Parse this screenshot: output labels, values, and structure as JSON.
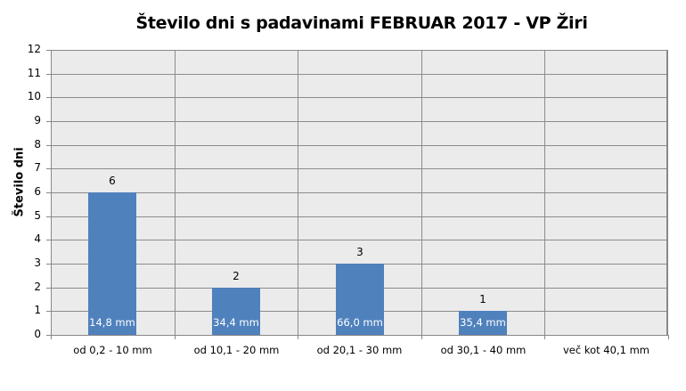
{
  "chart_data": {
    "type": "bar",
    "title": "Število dni s padavinami  FEBRUAR 2017 - VP Žiri",
    "xlabel": "",
    "ylabel": "Število dni",
    "ylim": [
      0,
      12
    ],
    "yticks": [
      "0",
      "1",
      "2",
      "3",
      "4",
      "5",
      "6",
      "7",
      "8",
      "9",
      "10",
      "11",
      "12"
    ],
    "grid": true,
    "legend": "none",
    "categories": [
      "od 0,2 - 10 mm",
      "od 10,1 - 20 mm",
      "od 20,1 - 30 mm",
      "od 30,1 - 40 mm",
      "več kot 40,1 mm"
    ],
    "values": [
      6,
      2,
      3,
      1,
      0
    ],
    "value_labels": [
      "6",
      "2",
      "3",
      "1",
      ""
    ],
    "annotations": [
      "14,8 mm",
      "34,4 mm",
      "66,0 mm",
      "35,4 mm",
      ""
    ],
    "bar_color": "#4f81bd"
  }
}
